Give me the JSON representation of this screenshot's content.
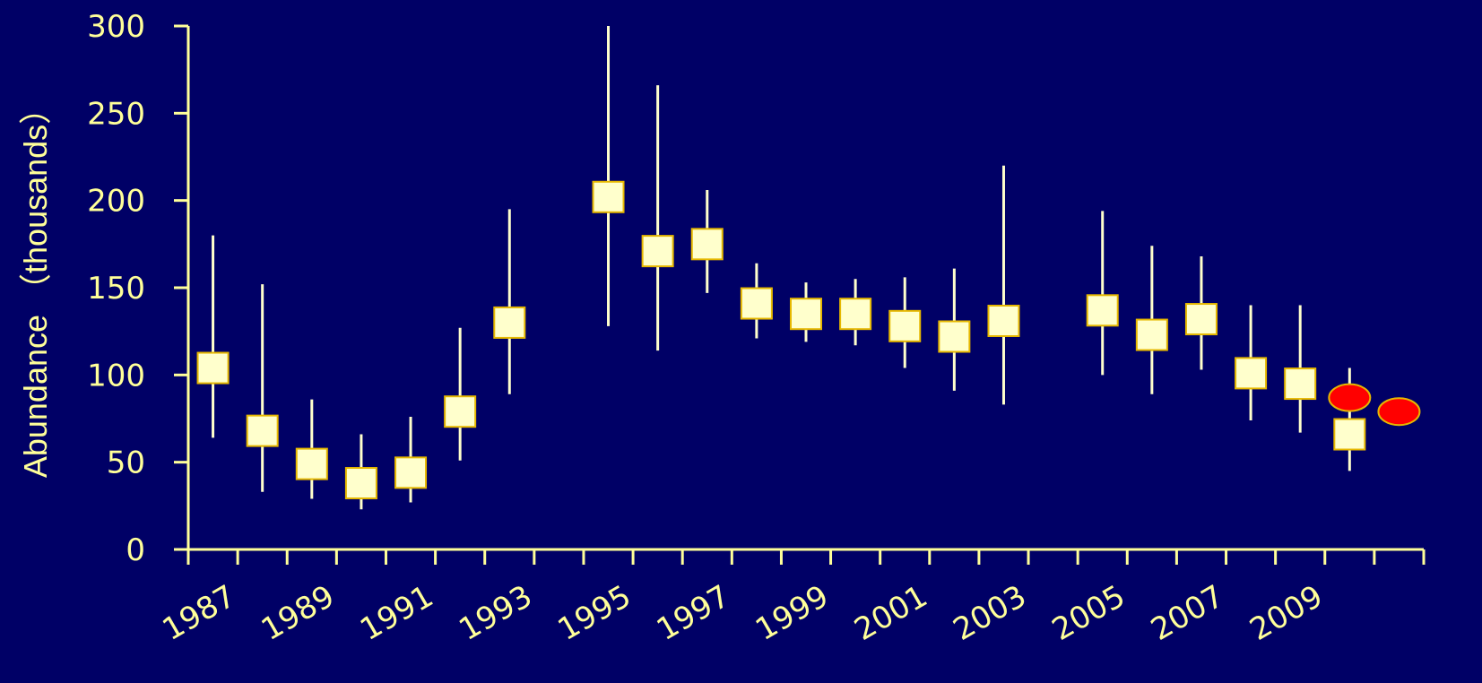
{
  "chart_data": {
    "type": "scatter",
    "title": "",
    "xlabel": "",
    "ylabel": "Abundance （thousands）",
    "ylim": [
      0,
      300
    ],
    "yticks": [
      0,
      50,
      100,
      150,
      200,
      250,
      300
    ],
    "xlim": [
      1987,
      2011
    ],
    "xtick_labels": [
      "1987",
      "1989",
      "1991",
      "1993",
      "1995",
      "1997",
      "1999",
      "2001",
      "2003",
      "2005",
      "2007",
      "2009"
    ],
    "grid": false,
    "colors": {
      "background": "#000066",
      "axis": "#ffff99",
      "box": "#ffffcc",
      "box_edge": "#e6b800",
      "marker": "#ff0000"
    },
    "series": [
      {
        "marker": "square",
        "x": [
          1987,
          1988,
          1989,
          1990,
          1991,
          1992,
          1993,
          1995,
          1996,
          1997,
          1998,
          1999,
          2000,
          2001,
          2002,
          2003,
          2005,
          2006,
          2007,
          2008,
          2009,
          2010
        ],
        "values": [
          104,
          68,
          49,
          38,
          44,
          79,
          130,
          202,
          171,
          175,
          141,
          135,
          135,
          128,
          122,
          131,
          137,
          123,
          132,
          101,
          95,
          66
        ],
        "lower": [
          64,
          33,
          29,
          23,
          27,
          51,
          89,
          128,
          114,
          147,
          121,
          119,
          117,
          104,
          91,
          83,
          100,
          89,
          103,
          74,
          67,
          45
        ],
        "upper": [
          180,
          152,
          86,
          66,
          76,
          127,
          195,
          300,
          266,
          206,
          164,
          153,
          155,
          156,
          161,
          220,
          194,
          174,
          168,
          140,
          140,
          104
        ]
      },
      {
        "marker": "ellipse",
        "x": [
          2010,
          2011
        ],
        "values": [
          87,
          79
        ]
      }
    ]
  }
}
